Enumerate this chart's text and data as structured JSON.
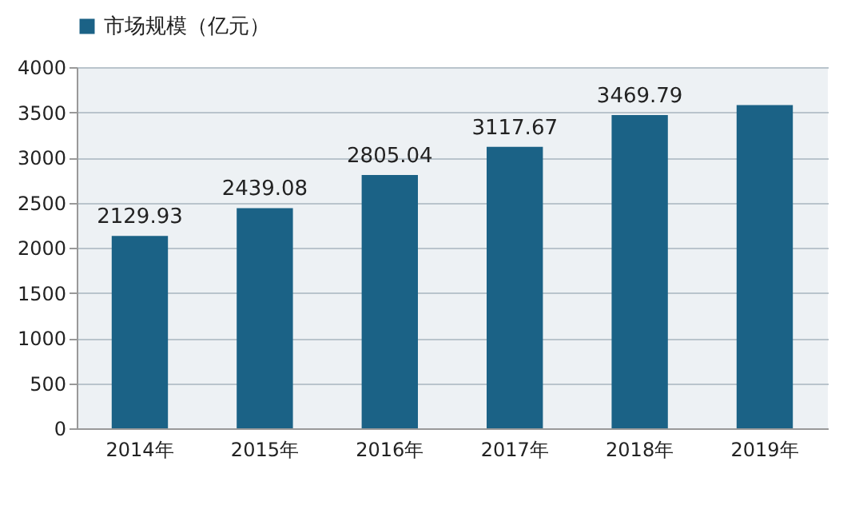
{
  "chart_data": {
    "type": "bar",
    "categories": [
      "2014年",
      "2015年",
      "2016年",
      "2017年",
      "2018年",
      "2019年"
    ],
    "series": [
      {
        "name": "市场规模（亿元）",
        "color": "#1b6286",
        "values": [
          2129.93,
          2439.08,
          2805.04,
          3117.67,
          3469.79,
          3580
        ],
        "value_labels": [
          "2129.93",
          "2439.08",
          "2805.04",
          "3117.67",
          "3469.79",
          null
        ]
      }
    ],
    "ylim": [
      0,
      4000
    ],
    "yticks": [
      0,
      500,
      1000,
      1500,
      2000,
      2500,
      3000,
      3500,
      4000
    ],
    "grid": "y",
    "legend": "top"
  }
}
